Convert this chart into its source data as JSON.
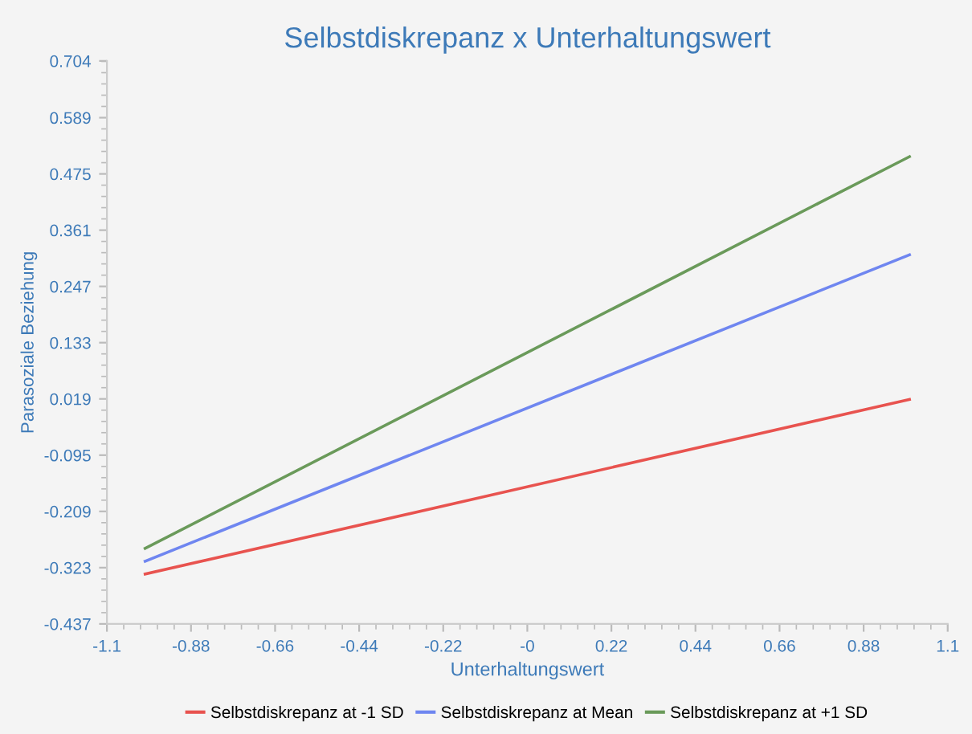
{
  "chart_data": {
    "type": "line",
    "title": "Selbstdiskrepanz x Unterhaltungswert",
    "xlabel": "Unterhaltungswert",
    "ylabel": "Parasoziale Beziehung",
    "x": [
      -1,
      1
    ],
    "series": [
      {
        "name": "Selbstdiskrepanz at -1 SD",
        "color": "#e8534f",
        "values": [
          -0.336,
          0.018
        ]
      },
      {
        "name": "Selbstdiskrepanz at Mean",
        "color": "#6f86f0",
        "values": [
          -0.31,
          0.311
        ]
      },
      {
        "name": "Selbstdiskrepanz at +1 SD",
        "color": "#6a9a5a",
        "values": [
          -0.284,
          0.51
        ]
      }
    ],
    "xlim": [
      -1.1,
      1.1
    ],
    "xticks": [
      -1.1,
      -0.88,
      -0.66,
      -0.44,
      -0.22,
      {
        "value": 0,
        "label": "-0"
      },
      0.22,
      0.44,
      0.66,
      0.88,
      1.1
    ],
    "ylim": [
      -0.437,
      0.704
    ],
    "yticks": [
      -0.437,
      -0.323,
      -0.209,
      -0.095,
      0.019,
      0.133,
      0.247,
      0.361,
      0.475,
      0.589,
      0.704
    ],
    "grid": false,
    "legend": "bottom",
    "marker": "none",
    "line_style": "solid"
  }
}
